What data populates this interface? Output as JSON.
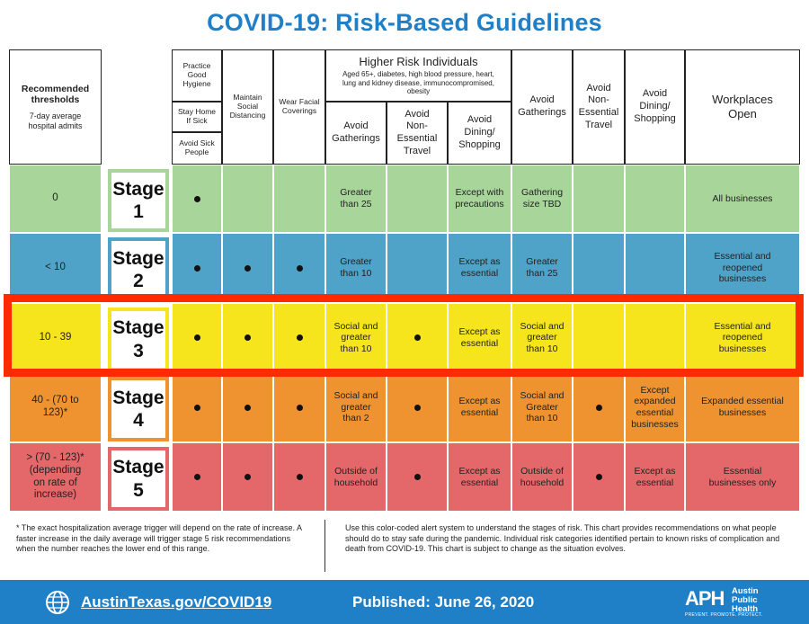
{
  "title": "COVID-19: Risk-Based Guidelines",
  "headers": {
    "thresholds_title": "Recommended thresholds",
    "thresholds_sub": "7-day average hospital admits",
    "practice_hygiene": "Practice Good Hygiene",
    "stay_home": "Stay Home If Sick",
    "avoid_sick": "Avoid Sick People",
    "maintain_distancing": "Maintain Social Distancing",
    "wear_coverings": "Wear Facial Coverings",
    "higher_risk_title": "Higher Risk Individuals",
    "higher_risk_sub": "Aged 65+, diabetes, high blood pressure, heart, lung and kidney disease, immunocompromised, obesity",
    "avoid_gatherings": "Avoid Gatherings",
    "avoid_travel": "Avoid Non-Essential Travel",
    "avoid_dining": "Avoid Dining/ Shopping",
    "workplaces": "Workplaces Open"
  },
  "stages": [
    {
      "threshold": "0",
      "label": "Stage",
      "number": "1",
      "color": "#a8d69a",
      "border": "#a8d69a",
      "hygiene": true,
      "distancing": false,
      "coverings": false,
      "hr_gatherings": "Greater than 25",
      "hr_travel": "",
      "hr_dining": "Except with precautions",
      "gatherings": "Gathering size TBD",
      "travel": "",
      "dining": "",
      "workplaces": "All businesses"
    },
    {
      "threshold": "< 10",
      "label": "Stage",
      "number": "2",
      "color": "#4fa2c8",
      "border": "#4fa2c8",
      "hygiene": true,
      "distancing": true,
      "coverings": true,
      "hr_gatherings": "Greater than 10",
      "hr_travel": "",
      "hr_dining": "Except as essential",
      "gatherings": "Greater than 25",
      "travel": "",
      "dining": "",
      "workplaces": "Essential and reopened businesses"
    },
    {
      "threshold": "10 - 39",
      "label": "Stage",
      "number": "3",
      "color": "#f6e51c",
      "border": "#f6e51c",
      "hygiene": true,
      "distancing": true,
      "coverings": true,
      "hr_gatherings": "Social and greater than 10",
      "hr_travel": "dot",
      "hr_dining": "Except as essential",
      "gatherings": "Social and greater than 10",
      "travel": "",
      "dining": "",
      "workplaces": "Essential and reopened businesses"
    },
    {
      "threshold": "40 - (70 to 123)*",
      "label": "Stage",
      "number": "4",
      "color": "#ee9330",
      "border": "#ee9330",
      "hygiene": true,
      "distancing": true,
      "coverings": true,
      "hr_gatherings": "Social and greater than 2",
      "hr_travel": "dot",
      "hr_dining": "Except as essential",
      "gatherings": "Social and Greater than 10",
      "travel": "dot",
      "dining": "Except expanded essential businesses",
      "workplaces": "Expanded essential businesses"
    },
    {
      "threshold": "> (70 - 123)* (depending on rate of increase)",
      "label": "Stage",
      "number": "5",
      "color": "#e4676a",
      "border": "#e4676a",
      "hygiene": true,
      "distancing": true,
      "coverings": true,
      "hr_gatherings": "Outside of household",
      "hr_travel": "dot",
      "hr_dining": "Except as essential",
      "gatherings": "Outside of household",
      "travel": "dot",
      "dining": "Except as essential",
      "workplaces": "Essential businesses only"
    }
  ],
  "footnote_left": "* The exact hospitalization average trigger will depend on the rate of increase. A faster increase in the daily average will trigger stage 5 risk recommendations when the number reaches the lower end of this range.",
  "footnote_right": "Use this color-coded alert system to understand the stages of risk. This chart provides recommendations on what people should do to stay safe during the pandemic. Individual risk categories identified pertain to known risks of complication and death from COVID-19. This chart is subject to change as the situation evolves.",
  "footer": {
    "link": "AustinTexas.gov/COVID19",
    "published": "Published: June 26, 2020",
    "logo": "APH",
    "logo_text": "Austin Public Health",
    "logo_tag": "PREVENT. PROMOTE. PROTECT."
  },
  "colors": {
    "accent": "#1f7fc7",
    "highlight": "#ff2a00"
  }
}
